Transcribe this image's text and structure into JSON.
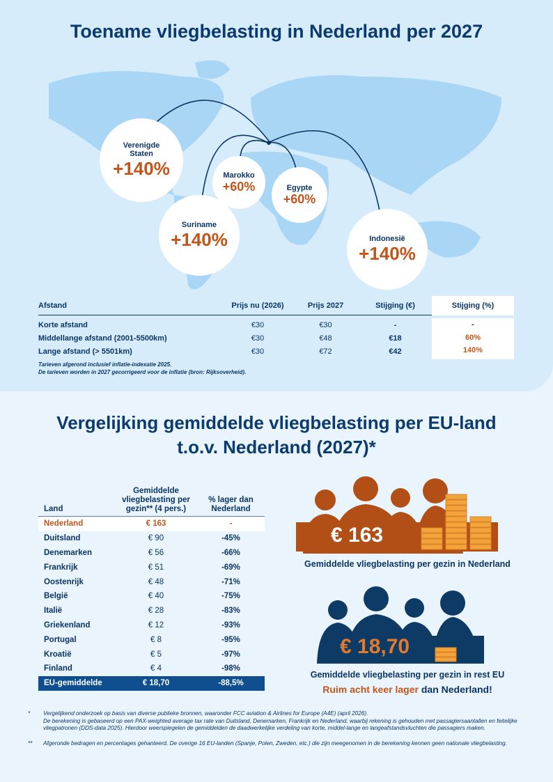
{
  "title1": "Toename vliegbelasting in Nederland per 2027",
  "destinations": [
    {
      "name": "Verenigde Staten",
      "pct": "+140%"
    },
    {
      "name": "Suriname",
      "pct": "+140%"
    },
    {
      "name": "Marokko",
      "pct": "+60%"
    },
    {
      "name": "Egypte",
      "pct": "+60%"
    },
    {
      "name": "Indonesië",
      "pct": "+140%"
    }
  ],
  "table1": {
    "headers": [
      "Afstand",
      "Prijs nu (2026)",
      "Prijs 2027",
      "Stijging (€)",
      "Stijging (%)"
    ],
    "rows": [
      [
        "Korte afstand",
        "€30",
        "€30",
        "-",
        "-"
      ],
      [
        "Middellange afstand (2001-5500km)",
        "€30",
        "€48",
        "€18",
        "60%"
      ],
      [
        "Lange afstand (> 5501km)",
        "€30",
        "€72",
        "€42",
        "140%"
      ]
    ],
    "notes": [
      "Tarieven afgerond inclusief inflatie-indexatie 2025.",
      "De tarieven worden in 2027 gecorrigeerd voor de inflatie (bron: Rijksoverheid)."
    ]
  },
  "title2a": "Vergelijking gemiddelde vliegbelasting per EU-land",
  "title2b": "t.o.v. Nederland (2027)*",
  "table2": {
    "headers": [
      "Land",
      "Gemiddelde vliegbelasting per gezin** (4 pers.)",
      "% lager dan Nederland"
    ],
    "rows": [
      [
        "Nederland",
        "€ 163",
        "-"
      ],
      [
        "Duitsland",
        "€ 90",
        "-45%"
      ],
      [
        "Denemarken",
        "€ 56",
        "-66%"
      ],
      [
        "Frankrijk",
        "€ 51",
        "-69%"
      ],
      [
        "Oostenrijk",
        "€ 48",
        "-71%"
      ],
      [
        "België",
        "€ 40",
        "-75%"
      ],
      [
        "Italië",
        "€ 28",
        "-83%"
      ],
      [
        "Griekenland",
        "€ 12",
        "-93%"
      ],
      [
        "Portugal",
        "€ 8",
        "-95%"
      ],
      [
        "Kroatië",
        "€ 5",
        "-97%"
      ],
      [
        "Finland",
        "€ 4",
        "-98%"
      ],
      [
        "EU-gemiddelde",
        "€ 18,70",
        "-88,5%"
      ]
    ]
  },
  "nl_amount": "€ 163",
  "nl_caption": "Gemiddelde vliegbelasting per gezin in Nederland",
  "eu_amount": "€ 18,70",
  "eu_caption": "Gemiddelde vliegbelasting per gezin in rest EU",
  "eu_sub_orange": "Ruim acht keer lager",
  "eu_sub_rest": " dan Nederland!",
  "footnotes": [
    {
      "mark": "*",
      "text": "Vergelijkend onderzoek op basis van diverse publieke bronnen, waaronder FCC aviation & Airlines for Europe (A4E) (april 2026).",
      "text2": "De berekening is gebaseerd op een PAX-weighted average tax rate van Duitsland, Denemarken, Frankrijk en Nederland, waarbij rekening is gehouden met passagiersaantallen en feitelijke vliegpatronen (DDS-data 2025). Hierdoor weerspiegelen de gemiddelden de daadwerkelijke verdeling van korte, middel-lange en langeafstandsvluchten die passagiers maken."
    },
    {
      "mark": "**",
      "text": "Afgeronde bedragen en percentages gehanteerd. De overige 16 EU-landen (Spanje, Polen, Zweden, etc.) die zijn meegenomen in de berekening kennen geen nationale vliegbelasting."
    }
  ],
  "colors": {
    "navy": "#0b3563",
    "orange": "#c2561a",
    "map": "#a9d6f5"
  }
}
